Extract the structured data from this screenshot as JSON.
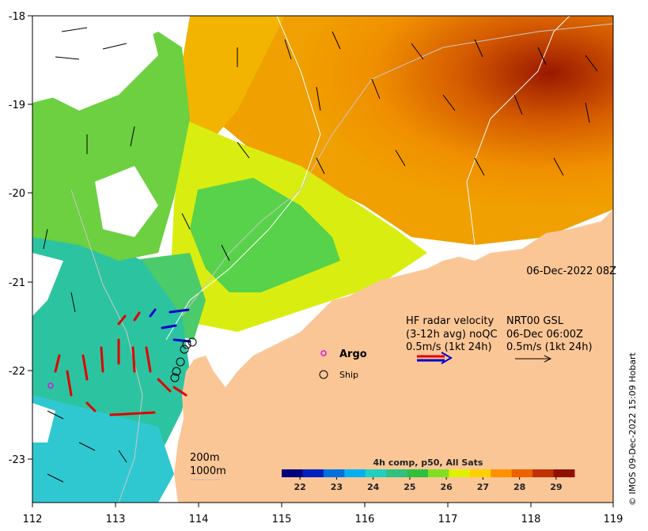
{
  "map": {
    "date_label": "06-Dec-2022 08Z",
    "x_ticks": [
      "112",
      "113",
      "114",
      "115",
      "116",
      "117",
      "118",
      "119"
    ],
    "y_ticks": [
      "-18",
      "-19",
      "-20",
      "-21",
      "-22",
      "-23"
    ],
    "xlim": [
      112,
      119
    ],
    "ylim": [
      -23.5,
      -18
    ],
    "land_color": "#fbc696",
    "no_data_color": "#ffffff",
    "hf_radar": {
      "title_line1": "HF radar velocity",
      "title_line2": "(3-12h avg) noQC",
      "scale": "0.5m/s (1kt 24h)",
      "arrow_colors": [
        "#e00000",
        "#0000cc"
      ]
    },
    "nrt": {
      "title_line1": "NRT00 GSL",
      "title_line2": "06-Dec 06:00Z",
      "scale": "0.5m/s (1kt 24h)"
    },
    "argo": {
      "label": "Argo",
      "marker_color": "#e010e0"
    },
    "ship": {
      "label": "Ship"
    },
    "isobaths": {
      "label1": "200m",
      "label2": "1000m"
    },
    "colorbar": {
      "title": "4h comp, p50, All Sats",
      "ticks": [
        "22",
        "23",
        "24",
        "25",
        "26",
        "27",
        "28",
        "29"
      ],
      "range": [
        21.5,
        29.5
      ],
      "colors": [
        "#00007f",
        "#0020c0",
        "#0070e0",
        "#00b0f0",
        "#20d0c0",
        "#30c080",
        "#30c040",
        "#80e020",
        "#e0f000",
        "#ffd000",
        "#ff9000",
        "#ee6000",
        "#c03000",
        "#901000"
      ]
    },
    "copyright": "© IMOS 09-Dec-2022 15:09 Hobart"
  }
}
